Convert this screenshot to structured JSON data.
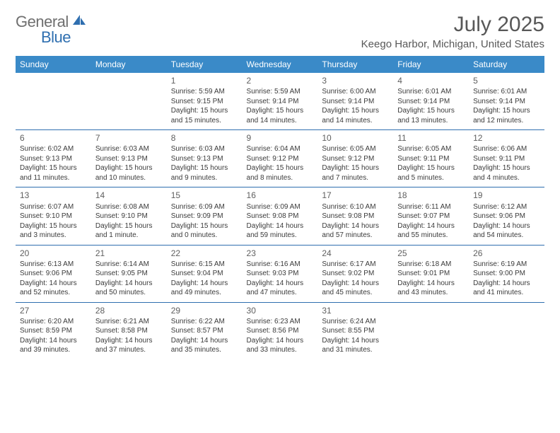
{
  "logo": {
    "word1": "General",
    "word2": "Blue"
  },
  "title": "July 2025",
  "location": "Keego Harbor, Michigan, United States",
  "style": {
    "header_bg": "#3a8ac8",
    "header_fg": "#ffffff",
    "row_border": "#2f6fb0",
    "text_color": "#3b3b3b",
    "accent": "#2f6fb0"
  },
  "weekdays": [
    "Sunday",
    "Monday",
    "Tuesday",
    "Wednesday",
    "Thursday",
    "Friday",
    "Saturday"
  ],
  "weeks": [
    [
      null,
      null,
      {
        "n": "1",
        "sr": "Sunrise: 5:59 AM",
        "ss": "Sunset: 9:15 PM",
        "d1": "Daylight: 15 hours",
        "d2": "and 15 minutes."
      },
      {
        "n": "2",
        "sr": "Sunrise: 5:59 AM",
        "ss": "Sunset: 9:14 PM",
        "d1": "Daylight: 15 hours",
        "d2": "and 14 minutes."
      },
      {
        "n": "3",
        "sr": "Sunrise: 6:00 AM",
        "ss": "Sunset: 9:14 PM",
        "d1": "Daylight: 15 hours",
        "d2": "and 14 minutes."
      },
      {
        "n": "4",
        "sr": "Sunrise: 6:01 AM",
        "ss": "Sunset: 9:14 PM",
        "d1": "Daylight: 15 hours",
        "d2": "and 13 minutes."
      },
      {
        "n": "5",
        "sr": "Sunrise: 6:01 AM",
        "ss": "Sunset: 9:14 PM",
        "d1": "Daylight: 15 hours",
        "d2": "and 12 minutes."
      }
    ],
    [
      {
        "n": "6",
        "sr": "Sunrise: 6:02 AM",
        "ss": "Sunset: 9:13 PM",
        "d1": "Daylight: 15 hours",
        "d2": "and 11 minutes."
      },
      {
        "n": "7",
        "sr": "Sunrise: 6:03 AM",
        "ss": "Sunset: 9:13 PM",
        "d1": "Daylight: 15 hours",
        "d2": "and 10 minutes."
      },
      {
        "n": "8",
        "sr": "Sunrise: 6:03 AM",
        "ss": "Sunset: 9:13 PM",
        "d1": "Daylight: 15 hours",
        "d2": "and 9 minutes."
      },
      {
        "n": "9",
        "sr": "Sunrise: 6:04 AM",
        "ss": "Sunset: 9:12 PM",
        "d1": "Daylight: 15 hours",
        "d2": "and 8 minutes."
      },
      {
        "n": "10",
        "sr": "Sunrise: 6:05 AM",
        "ss": "Sunset: 9:12 PM",
        "d1": "Daylight: 15 hours",
        "d2": "and 7 minutes."
      },
      {
        "n": "11",
        "sr": "Sunrise: 6:05 AM",
        "ss": "Sunset: 9:11 PM",
        "d1": "Daylight: 15 hours",
        "d2": "and 5 minutes."
      },
      {
        "n": "12",
        "sr": "Sunrise: 6:06 AM",
        "ss": "Sunset: 9:11 PM",
        "d1": "Daylight: 15 hours",
        "d2": "and 4 minutes."
      }
    ],
    [
      {
        "n": "13",
        "sr": "Sunrise: 6:07 AM",
        "ss": "Sunset: 9:10 PM",
        "d1": "Daylight: 15 hours",
        "d2": "and 3 minutes."
      },
      {
        "n": "14",
        "sr": "Sunrise: 6:08 AM",
        "ss": "Sunset: 9:10 PM",
        "d1": "Daylight: 15 hours",
        "d2": "and 1 minute."
      },
      {
        "n": "15",
        "sr": "Sunrise: 6:09 AM",
        "ss": "Sunset: 9:09 PM",
        "d1": "Daylight: 15 hours",
        "d2": "and 0 minutes."
      },
      {
        "n": "16",
        "sr": "Sunrise: 6:09 AM",
        "ss": "Sunset: 9:08 PM",
        "d1": "Daylight: 14 hours",
        "d2": "and 59 minutes."
      },
      {
        "n": "17",
        "sr": "Sunrise: 6:10 AM",
        "ss": "Sunset: 9:08 PM",
        "d1": "Daylight: 14 hours",
        "d2": "and 57 minutes."
      },
      {
        "n": "18",
        "sr": "Sunrise: 6:11 AM",
        "ss": "Sunset: 9:07 PM",
        "d1": "Daylight: 14 hours",
        "d2": "and 55 minutes."
      },
      {
        "n": "19",
        "sr": "Sunrise: 6:12 AM",
        "ss": "Sunset: 9:06 PM",
        "d1": "Daylight: 14 hours",
        "d2": "and 54 minutes."
      }
    ],
    [
      {
        "n": "20",
        "sr": "Sunrise: 6:13 AM",
        "ss": "Sunset: 9:06 PM",
        "d1": "Daylight: 14 hours",
        "d2": "and 52 minutes."
      },
      {
        "n": "21",
        "sr": "Sunrise: 6:14 AM",
        "ss": "Sunset: 9:05 PM",
        "d1": "Daylight: 14 hours",
        "d2": "and 50 minutes."
      },
      {
        "n": "22",
        "sr": "Sunrise: 6:15 AM",
        "ss": "Sunset: 9:04 PM",
        "d1": "Daylight: 14 hours",
        "d2": "and 49 minutes."
      },
      {
        "n": "23",
        "sr": "Sunrise: 6:16 AM",
        "ss": "Sunset: 9:03 PM",
        "d1": "Daylight: 14 hours",
        "d2": "and 47 minutes."
      },
      {
        "n": "24",
        "sr": "Sunrise: 6:17 AM",
        "ss": "Sunset: 9:02 PM",
        "d1": "Daylight: 14 hours",
        "d2": "and 45 minutes."
      },
      {
        "n": "25",
        "sr": "Sunrise: 6:18 AM",
        "ss": "Sunset: 9:01 PM",
        "d1": "Daylight: 14 hours",
        "d2": "and 43 minutes."
      },
      {
        "n": "26",
        "sr": "Sunrise: 6:19 AM",
        "ss": "Sunset: 9:00 PM",
        "d1": "Daylight: 14 hours",
        "d2": "and 41 minutes."
      }
    ],
    [
      {
        "n": "27",
        "sr": "Sunrise: 6:20 AM",
        "ss": "Sunset: 8:59 PM",
        "d1": "Daylight: 14 hours",
        "d2": "and 39 minutes."
      },
      {
        "n": "28",
        "sr": "Sunrise: 6:21 AM",
        "ss": "Sunset: 8:58 PM",
        "d1": "Daylight: 14 hours",
        "d2": "and 37 minutes."
      },
      {
        "n": "29",
        "sr": "Sunrise: 6:22 AM",
        "ss": "Sunset: 8:57 PM",
        "d1": "Daylight: 14 hours",
        "d2": "and 35 minutes."
      },
      {
        "n": "30",
        "sr": "Sunrise: 6:23 AM",
        "ss": "Sunset: 8:56 PM",
        "d1": "Daylight: 14 hours",
        "d2": "and 33 minutes."
      },
      {
        "n": "31",
        "sr": "Sunrise: 6:24 AM",
        "ss": "Sunset: 8:55 PM",
        "d1": "Daylight: 14 hours",
        "d2": "and 31 minutes."
      },
      null,
      null
    ]
  ]
}
